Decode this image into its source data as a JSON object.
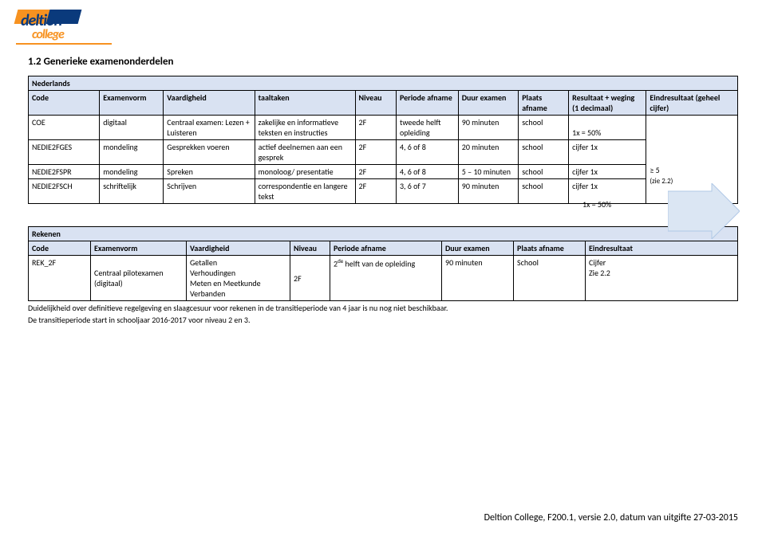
{
  "logo": {
    "word1": "deltion",
    "word2": "college"
  },
  "section_title": "1.2 Generieke examenonderdelen",
  "ned": {
    "title": "Nederlands",
    "headers": [
      "Code",
      "Examenvorm",
      "Vaardigheid",
      "taaltaken",
      "Niveau",
      "Periode afname",
      "Duur examen",
      "Plaats afname",
      "Resultaat + weging (1 decimaal)",
      "Eindresultaat (geheel cijfer)"
    ],
    "rows": [
      {
        "code": "COE",
        "vorm": "digitaal",
        "vaard": "Centraal examen: Lezen + Luisteren",
        "taal": "zakelijke en informatieve teksten en instructies",
        "niv": "2F",
        "per": "tweede helft opleiding",
        "duur": "90 minuten",
        "plaats": "school",
        "res": "1x = 50%"
      },
      {
        "code": "NEDIE2FGES",
        "vorm": "mondeling",
        "vaard": "Gesprekken voeren",
        "taal": "actief deelnemen aan een gesprek",
        "niv": "2F",
        "per": "4, 6  of 8",
        "duur": "20 minuten",
        "plaats": "school",
        "res": "cijfer 1x"
      },
      {
        "code": "NEDIE2FSPR",
        "vorm": "mondeling",
        "vaard": "Spreken",
        "taal": "monoloog/ presentatie",
        "niv": "2F",
        "per": "4, 6  of 8",
        "duur": "5 – 10 minuten",
        "plaats": "school",
        "res": "cijfer 1x"
      },
      {
        "code": "NEDIE2FSCH",
        "vorm": "schriftelijk",
        "vaard": "Schrijven",
        "taal": "correspondentie en langere tekst",
        "niv": "2F",
        "per": "3, 6  of 7",
        "duur": "90 minuten",
        "plaats": "school",
        "res": "cijfer 1x"
      }
    ],
    "brace_label": "1x = 50%",
    "eind": "≥ 5",
    "eind_sub": "(zie 2.2)"
  },
  "rek": {
    "title": "Rekenen",
    "headers": [
      "Code",
      "Examenvorm",
      "Vaardigheid",
      "Niveau",
      "Periode afname",
      "Duur examen",
      "Plaats afname",
      "Eindresultaat"
    ],
    "row": {
      "code": "REK_2F",
      "vorm": "Centraal pilotexamen (digitaal)",
      "vaard": "Getallen\nVerhoudingen\nMeten en Meetkunde\nVerbanden",
      "niv": "2F",
      "per": "2ᵈᵉ helft van de opleiding",
      "duur": "90 minuten",
      "plaats": "School",
      "eind": "Cijfer\nZie 2.2"
    },
    "note1": "Duidelijkheid over definitieve regelgeving en slaagcesuur voor rekenen in de transitieperiode van 4 jaar  is nu nog niet beschikbaar.",
    "note2": "De transitieperiode start in schooljaar 2016-2017 voor niveau 2 en 3."
  },
  "footer": "Deltion College, F200.1, versie 2.0, datum van uitgifte 27-03-2015",
  "colors": {
    "header_bg": "#d9e2f2",
    "arrow_fill": "#dbe6f3",
    "arrow_stroke": "#b0c8e6",
    "orange": "#f79220",
    "blue": "#0a3a7c"
  },
  "col_widths": {
    "ned": [
      "78px",
      "70px",
      "100px",
      "110px",
      "45px",
      "68px",
      "66px",
      "55px",
      "85px",
      "100px"
    ],
    "rek": [
      "78px",
      "120px",
      "130px",
      "50px",
      "140px",
      "90px",
      "90px",
      "auto"
    ]
  }
}
